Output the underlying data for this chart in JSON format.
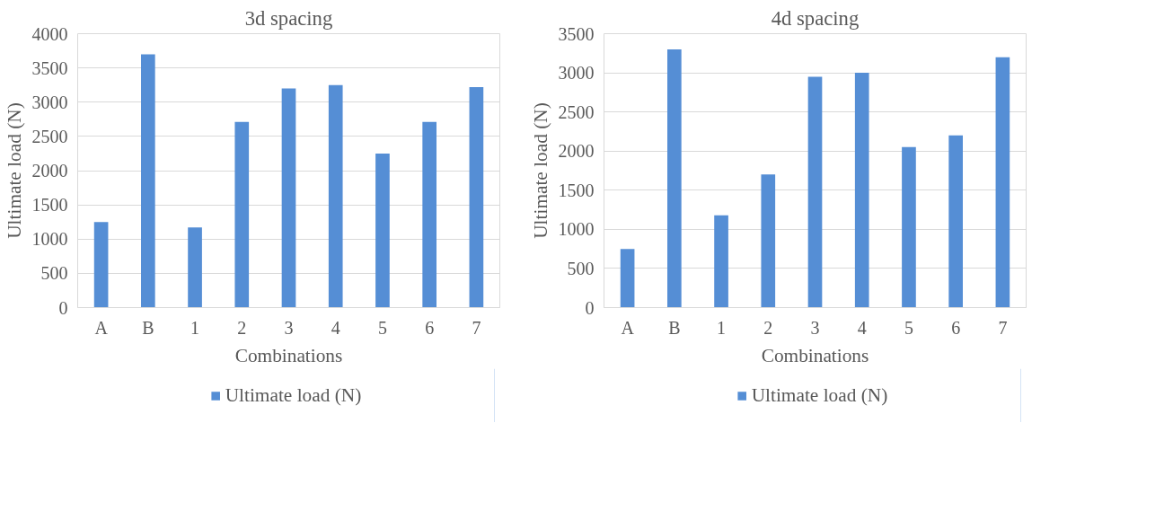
{
  "chart_data": [
    {
      "type": "bar",
      "title": "3d spacing",
      "xlabel": "Combinations",
      "ylabel": "Ultimate load (N)",
      "categories": [
        "A",
        "B",
        "1",
        "2",
        "3",
        "4",
        "5",
        "6",
        "7"
      ],
      "series": [
        {
          "name": "Ultimate load (N)",
          "color": "#558ed5",
          "values": [
            1250,
            3700,
            1170,
            2710,
            3200,
            3250,
            2250,
            2710,
            3220
          ]
        }
      ],
      "ylim": [
        0,
        4000
      ],
      "yticks": [
        0,
        500,
        1000,
        1500,
        2000,
        2500,
        3000,
        3500,
        4000
      ],
      "grid": "y",
      "legend": "bottom"
    },
    {
      "type": "bar",
      "title": "4d spacing",
      "xlabel": "Combinations",
      "ylabel": "Ultimate load (N)",
      "categories": [
        "A",
        "B",
        "1",
        "2",
        "3",
        "4",
        "5",
        "6",
        "7"
      ],
      "series": [
        {
          "name": "Ultimate load (N)",
          "color": "#558ed5",
          "values": [
            750,
            3300,
            1180,
            1700,
            2950,
            3000,
            2050,
            2200,
            3200
          ]
        }
      ],
      "ylim": [
        0,
        3500
      ],
      "yticks": [
        0,
        500,
        1000,
        1500,
        2000,
        2500,
        3000,
        3500
      ],
      "grid": "y",
      "legend": "bottom"
    }
  ]
}
